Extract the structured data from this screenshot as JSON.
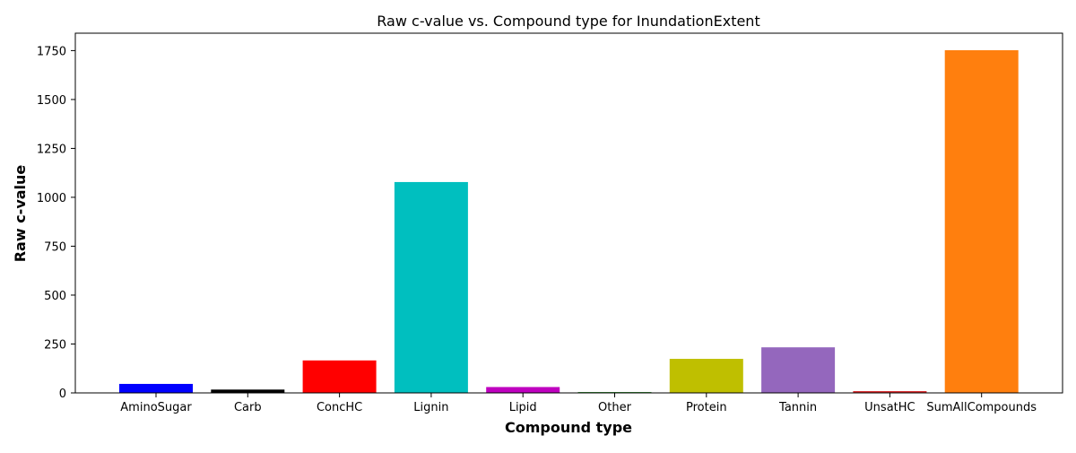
{
  "chart_data": {
    "type": "bar",
    "title": "Raw c-value vs. Compound type for InundationExtent",
    "xlabel": "Compound type",
    "ylabel": "Raw c-value",
    "categories": [
      "AminoSugar",
      "Carb",
      "ConcHC",
      "Lignin",
      "Lipid",
      "Other",
      "Protein",
      "Tannin",
      "UnsatHC",
      "SumAllCompounds"
    ],
    "values": [
      46,
      17,
      166,
      1078,
      30,
      4,
      174,
      233,
      9,
      1752
    ],
    "colors": [
      "#0000ff",
      "#000000",
      "#ff0000",
      "#00bfbf",
      "#bf00bf",
      "#008000",
      "#bfbf00",
      "#9467bd",
      "#d62728",
      "#ff7f0e"
    ],
    "yticks": [
      0,
      250,
      500,
      750,
      1000,
      1250,
      1500,
      1750
    ],
    "ylim": [
      0,
      1839
    ],
    "grid": false
  }
}
